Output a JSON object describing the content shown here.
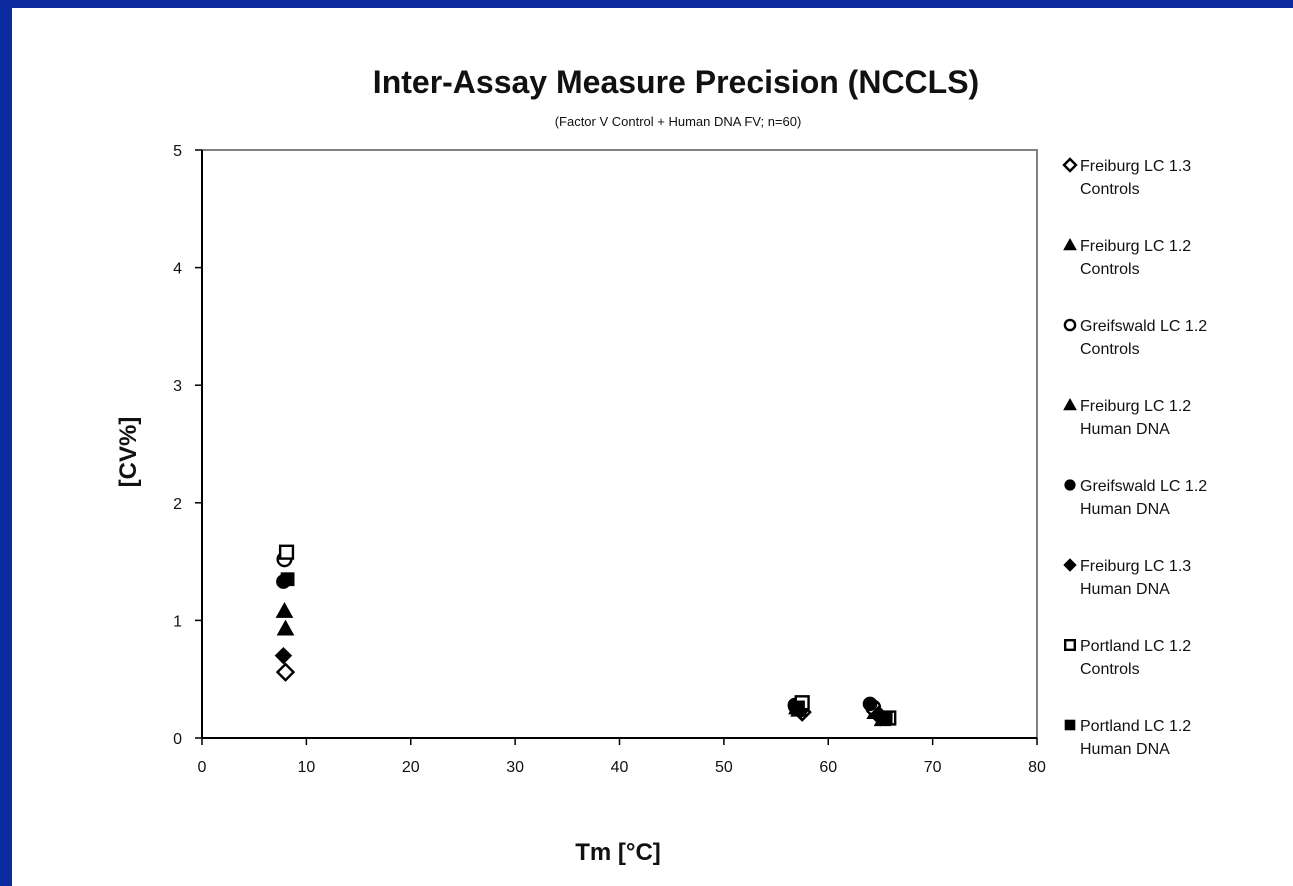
{
  "chart_data": {
    "type": "scatter",
    "title": "Inter-Assay Measure Precision (NCCLS)",
    "subtitle": "(Factor V Control + Human DNA FV;  n=60)",
    "xlabel": "Tm [°C]",
    "ylabel": "[CV%]",
    "xlim": [
      0,
      80
    ],
    "ylim": [
      0,
      5
    ],
    "x_ticks": [
      "0",
      "10",
      "20",
      "30",
      "40",
      "50",
      "60",
      "70",
      "80"
    ],
    "y_ticks": [
      "0",
      "1",
      "2",
      "3",
      "4",
      "5"
    ],
    "grid": false,
    "legend_position": "right",
    "series": [
      {
        "name": "Freiburg LC 1.3 Controls",
        "marker": "diamond-open",
        "color": "#000000",
        "points": [
          [
            8.0,
            0.56
          ],
          [
            57.5,
            0.22
          ],
          [
            65.0,
            0.18
          ]
        ]
      },
      {
        "name": "Freiburg LC 1.2 Controls",
        "marker": "triangle-filled",
        "color": "#000000",
        "points": [
          [
            7.9,
            1.08
          ],
          [
            57.0,
            0.26
          ],
          [
            64.5,
            0.22
          ]
        ]
      },
      {
        "name": "Greifswald LC 1.2 Controls",
        "marker": "circle-open",
        "color": "#000000",
        "points": [
          [
            7.9,
            1.52
          ],
          [
            56.9,
            0.27
          ],
          [
            64.3,
            0.26
          ]
        ]
      },
      {
        "name": "Freiburg LC 1.2 Human DNA",
        "marker": "triangle-filled",
        "color": "#000000",
        "points": [
          [
            8.0,
            0.93
          ],
          [
            57.2,
            0.24
          ],
          [
            65.2,
            0.16
          ]
        ]
      },
      {
        "name": "Greifswald LC 1.2 Human DNA",
        "marker": "circle-filled",
        "color": "#000000",
        "points": [
          [
            7.8,
            1.33
          ],
          [
            56.8,
            0.28
          ],
          [
            64.0,
            0.29
          ]
        ]
      },
      {
        "name": "Freiburg LC 1.3 Human DNA",
        "marker": "diamond-filled",
        "color": "#000000",
        "points": [
          [
            7.8,
            0.7
          ],
          [
            57.3,
            0.23
          ],
          [
            64.8,
            0.2
          ]
        ]
      },
      {
        "name": "Portland LC 1.2 Controls",
        "marker": "square-open",
        "color": "#000000",
        "points": [
          [
            8.1,
            1.58
          ],
          [
            57.5,
            0.3
          ],
          [
            65.8,
            0.17
          ]
        ]
      },
      {
        "name": "Portland LC 1.2 Human DNA",
        "marker": "square-filled",
        "color": "#000000",
        "points": [
          [
            8.2,
            1.35
          ],
          [
            57.1,
            0.26
          ],
          [
            65.5,
            0.17
          ]
        ]
      }
    ],
    "legend": [
      [
        "Freiburg LC 1.3",
        "Controls"
      ],
      [
        "Freiburg LC 1.2",
        "Controls"
      ],
      [
        "Greifswald LC 1.2",
        "Controls"
      ],
      [
        "Freiburg LC 1.2",
        "Human DNA"
      ],
      [
        "Greifswald LC 1.2",
        "Human DNA"
      ],
      [
        "Freiburg LC 1.3",
        "Human DNA"
      ],
      [
        "Portland LC 1.2",
        "Controls"
      ],
      [
        "Portland LC 1.2",
        "Human DNA"
      ]
    ]
  }
}
